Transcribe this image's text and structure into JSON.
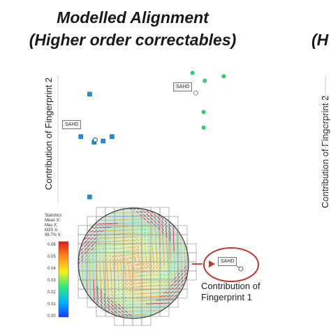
{
  "title_line1": "Modelled Alignment",
  "title_line2": "(Higher order correctables)",
  "title_right_partial": "(H",
  "ylabel": "Contribution of Fingerprint 2",
  "ylabel_right": "Contribution of Fingerprint 2",
  "xlabel_line1": "Contribution of",
  "xlabel_line2": "Fingerprint 1",
  "sahd_label": "SAHD",
  "stats": {
    "heading": "Statistics:",
    "rows": [
      "Mean   X:",
      "Max    X:",
      "M3S    X:",
      "99.7%  X:"
    ]
  },
  "colorbar_ticks": [
    "0.06",
    "0.05",
    "0.04",
    "0.03",
    "0.02",
    "0.01",
    "0.00"
  ],
  "colors": {
    "blue_series": "#1f8fd6",
    "green_series": "#2ecc71",
    "callout_circle": "#c0392b"
  },
  "chart_data": {
    "type": "scatter",
    "series": [
      {
        "color": "#1f8fd6",
        "marker": "square",
        "points": [
          [
            -2.6,
            3.2
          ],
          [
            -3.4,
            -0.6
          ],
          [
            -2.2,
            -1.1
          ],
          [
            -1.4,
            -1.0
          ],
          [
            -0.6,
            -0.6
          ],
          [
            -2.6,
            -6.0
          ]
        ]
      },
      {
        "color": "#2ecc71",
        "marker": "circle",
        "points": [
          [
            6.6,
            5.1
          ],
          [
            7.7,
            4.4
          ],
          [
            9.4,
            4.8
          ],
          [
            7.6,
            1.6
          ],
          [
            7.6,
            0.2
          ]
        ]
      }
    ],
    "highlighted": [
      {
        "label": "SAHD",
        "point": [
          -2.1,
          -0.9
        ],
        "series_color": "#1f8fd6"
      },
      {
        "label": "SAHD",
        "point": [
          6.9,
          3.3
        ],
        "series_color": "#2ecc71"
      }
    ]
  }
}
